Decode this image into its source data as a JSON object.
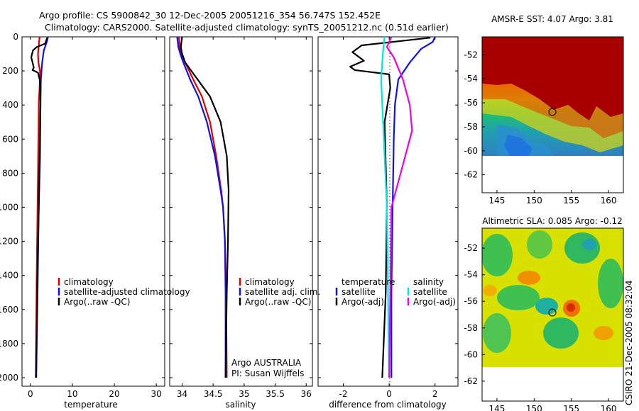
{
  "header": {
    "line1": "Argo profile: CS 5900842_30 12-Dec-2005 20051216_354 56.747S 152.452E",
    "line2": "Climatology: CARS2000. Satellite-adjusted climatology: synTS_20051212.nc (0.51d earlier)"
  },
  "footer": {
    "stamp": "CSIRO 21-Dec-2005 08:32:04"
  },
  "colors": {
    "climatology": "#e00000",
    "satellite": "#1010ee",
    "argo": "#000000",
    "sat_sal_diff": "#00e6e6",
    "argo_sal_diff": "#ee00ee"
  },
  "chart_data": [
    {
      "id": "temperature",
      "type": "line",
      "xlabel": "temperature",
      "ylabel": "",
      "xlim": [
        -2,
        32
      ],
      "ylim": [
        2050,
        0
      ],
      "xticks": [
        0,
        10,
        20,
        30
      ],
      "yticks": [
        0,
        200,
        400,
        600,
        800,
        1000,
        1200,
        1400,
        1600,
        1800,
        2000
      ],
      "legend": [
        "climatology",
        "satellite-adjusted climatology",
        "Argo(..raw -QC)"
      ],
      "series": [
        {
          "name": "climatology",
          "color": "#e00000",
          "x": [
            2.2,
            2.0,
            1.8,
            1.9,
            2.3,
            2.2,
            2.0,
            1.8,
            1.5,
            1.3
          ],
          "y": [
            0,
            50,
            100,
            150,
            200,
            300,
            380,
            800,
            1400,
            2000
          ]
        },
        {
          "name": "satellite-adjusted climatology",
          "color": "#1010ee",
          "x": [
            4.2,
            3.9,
            3.2,
            2.8,
            2.5,
            2.4,
            2.3,
            2.0,
            1.7,
            1.4
          ],
          "y": [
            0,
            30,
            80,
            150,
            250,
            400,
            700,
            1000,
            1500,
            2000
          ]
        },
        {
          "name": "Argo(..raw -QC)",
          "color": "#000000",
          "x": [
            4.0,
            3.5,
            1.5,
            0.6,
            0.2,
            0.8,
            0.5,
            1.8,
            2.3,
            2.4,
            2.2,
            2.0,
            1.6,
            1.3
          ],
          "y": [
            5,
            40,
            60,
            80,
            120,
            180,
            195,
            210,
            260,
            400,
            700,
            1000,
            1500,
            2000
          ]
        }
      ]
    },
    {
      "id": "salinity",
      "type": "line",
      "xlabel": "salinity",
      "xlim": [
        33.8,
        36.1
      ],
      "ylim": [
        2050,
        0
      ],
      "xticks": [
        34,
        34.5,
        35,
        35.5,
        36
      ],
      "xticklabels": [
        "34",
        "34.5",
        "35",
        "35.5",
        "36"
      ],
      "legend": [
        "climatology",
        "satellite adj. clim.",
        "Argo(..raw -QC)"
      ],
      "annotation": [
        "Argo AUSTRALIA",
        "PI: Susan Wijffels"
      ],
      "series": [
        {
          "name": "climatology",
          "color": "#e00000",
          "x": [
            33.95,
            33.96,
            33.99,
            34.05,
            34.18,
            34.32,
            34.45,
            34.55,
            34.63,
            34.66,
            34.69,
            34.71,
            34.72
          ],
          "y": [
            0,
            60,
            100,
            150,
            250,
            350,
            500,
            700,
            900,
            1000,
            1200,
            1500,
            2000
          ]
        },
        {
          "name": "satellite adj. clim.",
          "color": "#1010ee",
          "x": [
            33.92,
            33.94,
            33.97,
            34.02,
            34.13,
            34.26,
            34.4,
            34.53,
            34.62,
            34.66,
            34.69,
            34.7,
            34.7
          ],
          "y": [
            0,
            60,
            100,
            150,
            250,
            350,
            500,
            700,
            900,
            1000,
            1200,
            1500,
            2000
          ]
        },
        {
          "name": "Argo(..raw -QC)",
          "color": "#000000",
          "x": [
            34.0,
            33.98,
            34.0,
            34.05,
            34.25,
            34.45,
            34.62,
            34.72,
            34.75,
            34.74,
            34.72,
            34.7
          ],
          "y": [
            0,
            60,
            100,
            150,
            250,
            350,
            500,
            700,
            900,
            1200,
            1500,
            2000
          ]
        }
      ]
    },
    {
      "id": "difference",
      "type": "line",
      "xlabel": "difference from climatology",
      "xlim": [
        -3.1,
        3.0
      ],
      "ylim": [
        2050,
        0
      ],
      "xticks": [
        -2,
        0,
        2
      ],
      "legend_left_title": "temperature",
      "legend_right_title": "salinity",
      "legend_left": [
        "satellite",
        "Argo(-adj)"
      ],
      "legend_right": [
        "satellite",
        "Argo(-adj)"
      ],
      "series": [
        {
          "name": "temperature satellite",
          "color": "#1010ee",
          "x": [
            2.0,
            1.9,
            1.4,
            0.9,
            0.4,
            0.25,
            0.2,
            0.15,
            0.1,
            0.1
          ],
          "y": [
            0,
            30,
            70,
            150,
            250,
            400,
            600,
            1000,
            1500,
            2000
          ]
        },
        {
          "name": "temperature Argo(-adj)",
          "color": "#000000",
          "x": [
            1.8,
            0.8,
            -1.2,
            -1.6,
            -1.1,
            -1.7,
            -1.5,
            0.0,
            0.05,
            -0.2,
            -0.1,
            -0.15,
            -0.3
          ],
          "y": [
            5,
            20,
            50,
            90,
            140,
            175,
            195,
            220,
            300,
            500,
            1000,
            1500,
            2000
          ]
        },
        {
          "name": "salinity satellite",
          "color": "#00e6e6",
          "x": [
            -0.2,
            -0.25,
            -0.3,
            -0.35,
            -0.3,
            -0.2,
            -0.1,
            -0.05,
            0.0
          ],
          "y": [
            0,
            60,
            150,
            250,
            400,
            700,
            1000,
            1500,
            2000
          ]
        },
        {
          "name": "salinity Argo(-adj)",
          "color": "#ee00ee",
          "x": [
            0.1,
            -0.1,
            0.2,
            0.6,
            0.9,
            1.0,
            0.5,
            0.1,
            0.05,
            0.0
          ],
          "y": [
            0,
            60,
            120,
            250,
            400,
            550,
            800,
            1000,
            1500,
            2000
          ]
        }
      ]
    },
    {
      "id": "sst_map",
      "type": "heatmap",
      "title": "AMSR-E SST: 4.07  Argo: 3.81",
      "xlim": [
        143,
        162
      ],
      "ylim": [
        -63.5,
        -50.5
      ],
      "xticks": [
        145,
        150,
        155,
        160
      ],
      "yticks": [
        -52,
        -54,
        -56,
        -58,
        -60,
        -62
      ],
      "data_ylim": [
        -60,
        -50.5
      ],
      "float_position": [
        152.45,
        -56.75
      ]
    },
    {
      "id": "sla_map",
      "type": "heatmap",
      "title": "Altimetric SLA: 0.085  Argo: -0.12",
      "xlim": [
        143,
        162
      ],
      "ylim": [
        -63.5,
        -50.5
      ],
      "xticks": [
        145,
        150,
        155,
        160
      ],
      "yticks": [
        -52,
        -54,
        -56,
        -58,
        -60,
        -62
      ],
      "data_ylim": [
        -60,
        -50.5
      ],
      "float_position": [
        152.45,
        -56.75
      ]
    }
  ]
}
